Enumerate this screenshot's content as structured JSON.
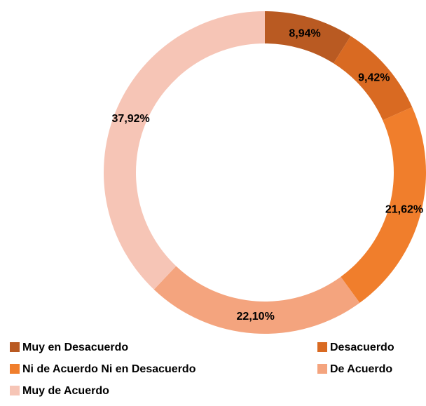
{
  "chart_data": {
    "type": "pie",
    "donut": true,
    "categories": [
      "Muy en Desacuerdo",
      "Desacuerdo",
      "Ni de Acuerdo Ni en Desacuerdo",
      "De Acuerdo",
      "Muy de Acuerdo"
    ],
    "values": [
      8.94,
      9.42,
      21.62,
      22.1,
      37.92
    ],
    "value_labels": [
      "8,94%",
      "9,42%",
      "21,62%",
      "22,10%",
      "37,92%"
    ],
    "colors": [
      "#b95a22",
      "#d96a22",
      "#f07e2c",
      "#f4a47e",
      "#f6c5b6"
    ],
    "legend": "bottom"
  }
}
